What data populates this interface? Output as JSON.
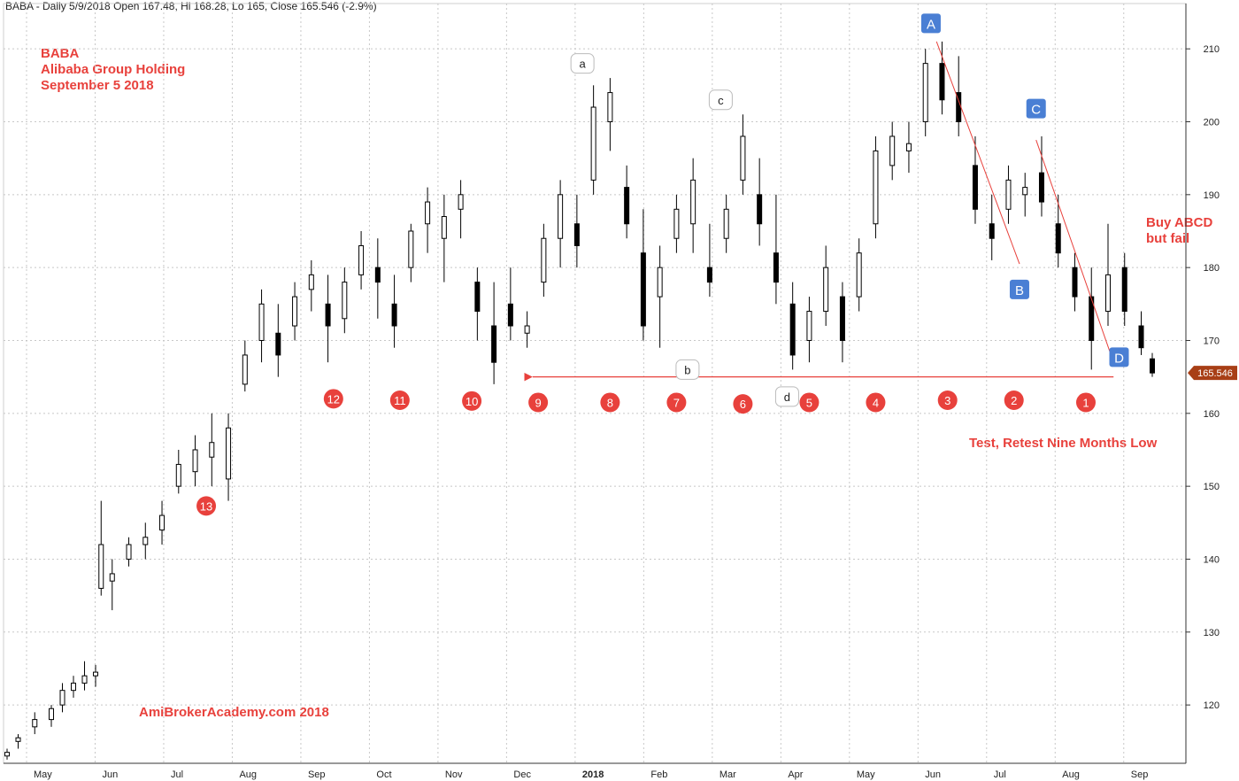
{
  "header": "BABA - Daily 5/9/2018 Open 167.48, Hi 168.28, Lo 165, Close 165.546 (-2.9%)",
  "title_lines": [
    "BABA",
    "Alibaba Group Holding",
    "September 5 2018"
  ],
  "watermark": "AmiBrokerAcademy.com  2018",
  "notes": {
    "buy": [
      "Buy ABCD",
      "but fail"
    ],
    "test": "Test, Retest Nine Months Low"
  },
  "last_price": "165.546",
  "colors": {
    "up": "#ffffff",
    "down": "#000000",
    "annotation": "#e8413c",
    "pattern": "#4a7fd4",
    "grid": "#c8c8c8"
  },
  "chart_data": {
    "type": "candlestick",
    "ylim": [
      112,
      215
    ],
    "yticks": [
      120,
      130,
      140,
      150,
      160,
      170,
      180,
      190,
      200,
      210
    ],
    "xticks": [
      "May",
      "Jun",
      "Jul",
      "Aug",
      "Sep",
      "Oct",
      "Nov",
      "Dec",
      "2018",
      "Feb",
      "Mar",
      "Apr",
      "May",
      "Jun",
      "Jul",
      "Aug",
      "Sep"
    ],
    "grid": true,
    "ohlc_approx": [
      {
        "t": 0,
        "o": 113,
        "h": 114,
        "l": 112.5,
        "c": 113.5
      },
      {
        "t": 2,
        "o": 115,
        "h": 116,
        "l": 114,
        "c": 115.5
      },
      {
        "t": 5,
        "o": 117,
        "h": 119,
        "l": 116,
        "c": 118
      },
      {
        "t": 8,
        "o": 118,
        "h": 120,
        "l": 117,
        "c": 119.5
      },
      {
        "t": 10,
        "o": 120,
        "h": 123,
        "l": 119,
        "c": 122
      },
      {
        "t": 12,
        "o": 122,
        "h": 124,
        "l": 121,
        "c": 123
      },
      {
        "t": 14,
        "o": 123,
        "h": 126,
        "l": 122,
        "c": 124
      },
      {
        "t": 16,
        "o": 124,
        "h": 125.5,
        "l": 122.5,
        "c": 124.5
      },
      {
        "t": 17,
        "o": 136,
        "h": 148,
        "l": 135,
        "c": 142
      },
      {
        "t": 19,
        "o": 137,
        "h": 140,
        "l": 133,
        "c": 138
      },
      {
        "t": 22,
        "o": 140,
        "h": 143,
        "l": 139,
        "c": 142
      },
      {
        "t": 25,
        "o": 142,
        "h": 145,
        "l": 140,
        "c": 143
      },
      {
        "t": 28,
        "o": 144,
        "h": 148,
        "l": 142,
        "c": 146
      },
      {
        "t": 31,
        "o": 150,
        "h": 155,
        "l": 149,
        "c": 153
      },
      {
        "t": 34,
        "o": 152,
        "h": 157,
        "l": 150,
        "c": 155
      },
      {
        "t": 37,
        "o": 154,
        "h": 160,
        "l": 150,
        "c": 156
      },
      {
        "t": 40,
        "o": 151,
        "h": 160,
        "l": 148,
        "c": 158
      },
      {
        "t": 43,
        "o": 164,
        "h": 170,
        "l": 163,
        "c": 168
      },
      {
        "t": 46,
        "o": 170,
        "h": 177,
        "l": 167,
        "c": 175
      },
      {
        "t": 49,
        "o": 171,
        "h": 175,
        "l": 165,
        "c": 168
      },
      {
        "t": 52,
        "o": 172,
        "h": 178,
        "l": 170,
        "c": 176
      },
      {
        "t": 55,
        "o": 177,
        "h": 181,
        "l": 174,
        "c": 179
      },
      {
        "t": 58,
        "o": 175,
        "h": 179,
        "l": 167,
        "c": 172
      },
      {
        "t": 61,
        "o": 173,
        "h": 180,
        "l": 171,
        "c": 178
      },
      {
        "t": 64,
        "o": 179,
        "h": 185,
        "l": 177,
        "c": 183
      },
      {
        "t": 67,
        "o": 180,
        "h": 184,
        "l": 173,
        "c": 178
      },
      {
        "t": 70,
        "o": 175,
        "h": 179,
        "l": 169,
        "c": 172
      },
      {
        "t": 73,
        "o": 180,
        "h": 186,
        "l": 178,
        "c": 185
      },
      {
        "t": 76,
        "o": 186,
        "h": 191,
        "l": 182,
        "c": 189
      },
      {
        "t": 79,
        "o": 184,
        "h": 190,
        "l": 178,
        "c": 187
      },
      {
        "t": 82,
        "o": 188,
        "h": 192,
        "l": 184,
        "c": 190
      },
      {
        "t": 85,
        "o": 178,
        "h": 180,
        "l": 170,
        "c": 174
      },
      {
        "t": 88,
        "o": 172,
        "h": 178,
        "l": 164,
        "c": 167
      },
      {
        "t": 91,
        "o": 175,
        "h": 180,
        "l": 170,
        "c": 172
      },
      {
        "t": 94,
        "o": 171,
        "h": 174,
        "l": 169,
        "c": 172
      },
      {
        "t": 97,
        "o": 178,
        "h": 186,
        "l": 176,
        "c": 184
      },
      {
        "t": 100,
        "o": 184,
        "h": 192,
        "l": 180,
        "c": 190
      },
      {
        "t": 103,
        "o": 186,
        "h": 190,
        "l": 180,
        "c": 183
      },
      {
        "t": 106,
        "o": 192,
        "h": 205,
        "l": 190,
        "c": 202
      },
      {
        "t": 109,
        "o": 200,
        "h": 206,
        "l": 196,
        "c": 204
      },
      {
        "t": 112,
        "o": 191,
        "h": 194,
        "l": 184,
        "c": 186
      },
      {
        "t": 115,
        "o": 182,
        "h": 188,
        "l": 170,
        "c": 172
      },
      {
        "t": 118,
        "o": 176,
        "h": 183,
        "l": 169,
        "c": 180
      },
      {
        "t": 121,
        "o": 184,
        "h": 190,
        "l": 182,
        "c": 188
      },
      {
        "t": 124,
        "o": 186,
        "h": 195,
        "l": 182,
        "c": 192
      },
      {
        "t": 127,
        "o": 180,
        "h": 186,
        "l": 176,
        "c": 178
      },
      {
        "t": 130,
        "o": 184,
        "h": 190,
        "l": 182,
        "c": 188
      },
      {
        "t": 133,
        "o": 192,
        "h": 201,
        "l": 190,
        "c": 198
      },
      {
        "t": 136,
        "o": 190,
        "h": 195,
        "l": 183,
        "c": 186
      },
      {
        "t": 139,
        "o": 182,
        "h": 190,
        "l": 175,
        "c": 178
      },
      {
        "t": 142,
        "o": 175,
        "h": 178,
        "l": 166,
        "c": 168
      },
      {
        "t": 145,
        "o": 170,
        "h": 176,
        "l": 167,
        "c": 174
      },
      {
        "t": 148,
        "o": 174,
        "h": 183,
        "l": 172,
        "c": 180
      },
      {
        "t": 151,
        "o": 176,
        "h": 178,
        "l": 167,
        "c": 170
      },
      {
        "t": 154,
        "o": 176,
        "h": 184,
        "l": 174,
        "c": 182
      },
      {
        "t": 157,
        "o": 186,
        "h": 198,
        "l": 184,
        "c": 196
      },
      {
        "t": 160,
        "o": 194,
        "h": 200,
        "l": 192,
        "c": 198
      },
      {
        "t": 163,
        "o": 196,
        "h": 200,
        "l": 193,
        "c": 197
      },
      {
        "t": 166,
        "o": 200,
        "h": 210,
        "l": 198,
        "c": 208
      },
      {
        "t": 169,
        "o": 208,
        "h": 211,
        "l": 201,
        "c": 203
      },
      {
        "t": 172,
        "o": 204,
        "h": 209,
        "l": 198,
        "c": 200
      },
      {
        "t": 175,
        "o": 194,
        "h": 198,
        "l": 186,
        "c": 188
      },
      {
        "t": 178,
        "o": 186,
        "h": 190,
        "l": 181,
        "c": 184
      },
      {
        "t": 181,
        "o": 188,
        "h": 194,
        "l": 186,
        "c": 192
      },
      {
        "t": 184,
        "o": 190,
        "h": 193,
        "l": 187,
        "c": 191
      },
      {
        "t": 187,
        "o": 193,
        "h": 198,
        "l": 187,
        "c": 189
      },
      {
        "t": 190,
        "o": 186,
        "h": 190,
        "l": 180,
        "c": 182
      },
      {
        "t": 193,
        "o": 180,
        "h": 182,
        "l": 174,
        "c": 176
      },
      {
        "t": 196,
        "o": 176,
        "h": 180,
        "l": 166,
        "c": 170
      },
      {
        "t": 199,
        "o": 174,
        "h": 186,
        "l": 172,
        "c": 179
      },
      {
        "t": 202,
        "o": 180,
        "h": 182,
        "l": 172,
        "c": 174
      },
      {
        "t": 205,
        "o": 172,
        "h": 174,
        "l": 168,
        "c": 169
      },
      {
        "t": 207,
        "o": 167.48,
        "h": 168.28,
        "l": 165,
        "c": 165.546
      }
    ],
    "support_line": {
      "value": 165,
      "label": "b"
    },
    "annotations": [
      {
        "label": "a",
        "t": 104,
        "y": 208
      },
      {
        "label": "c",
        "t": 129,
        "y": 203
      },
      {
        "label": "b",
        "t": 123,
        "y": 166
      },
      {
        "label": "d",
        "t": 141,
        "y": 162.3
      }
    ],
    "abcd": [
      {
        "label": "A",
        "t": 167,
        "y": 213.5
      },
      {
        "label": "B",
        "t": 183,
        "y": 177
      },
      {
        "label": "C",
        "t": 186,
        "y": 201.8
      },
      {
        "label": "D",
        "t": 201,
        "y": 167.7
      }
    ],
    "count_markers": [
      {
        "label": "13",
        "t": 36,
        "y": 147.3
      },
      {
        "label": "12",
        "t": 59,
        "y": 162
      },
      {
        "label": "11",
        "t": 71,
        "y": 161.8
      },
      {
        "label": "10",
        "t": 84,
        "y": 161.7
      },
      {
        "label": "9",
        "t": 96,
        "y": 161.5
      },
      {
        "label": "8",
        "t": 109,
        "y": 161.5
      },
      {
        "label": "7",
        "t": 121,
        "y": 161.5
      },
      {
        "label": "6",
        "t": 133,
        "y": 161.3
      },
      {
        "label": "5",
        "t": 145,
        "y": 161.5
      },
      {
        "label": "4",
        "t": 157,
        "y": 161.5
      },
      {
        "label": "3",
        "t": 170,
        "y": 161.8
      },
      {
        "label": "2",
        "t": 182,
        "y": 161.8
      },
      {
        "label": "1",
        "t": 195,
        "y": 161.5
      }
    ]
  }
}
